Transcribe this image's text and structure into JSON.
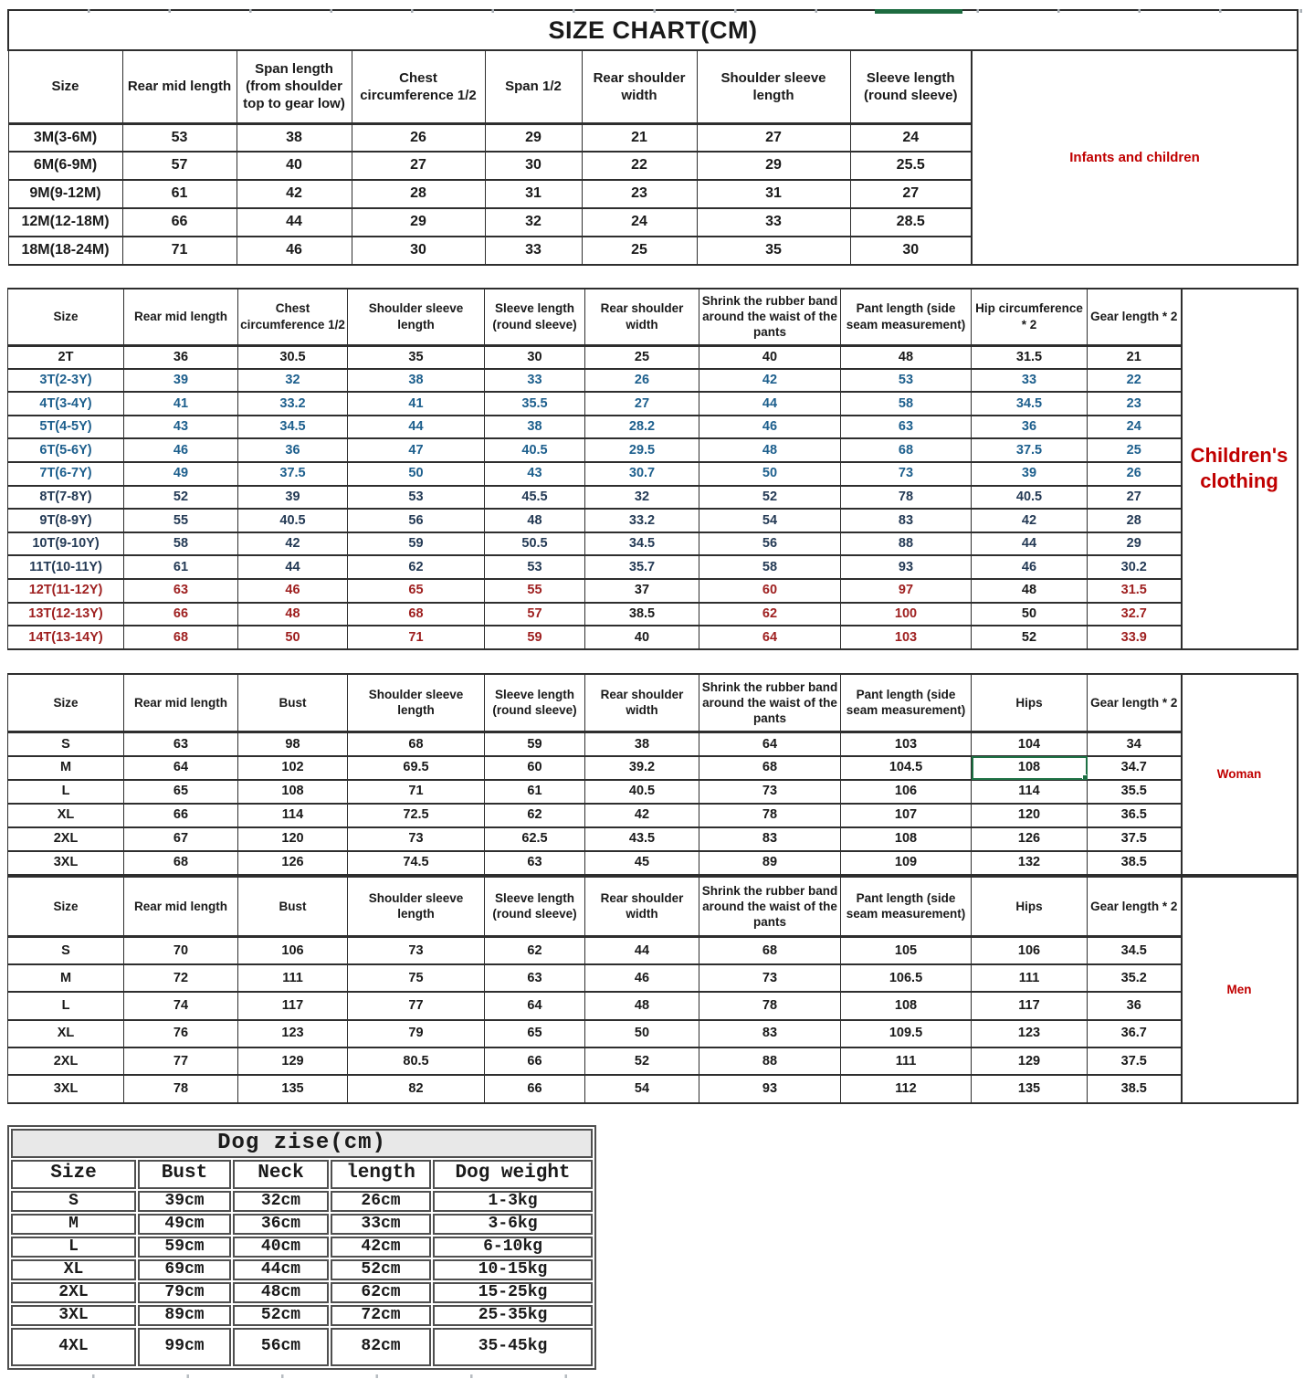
{
  "colors": {
    "black": "#1a1a1a",
    "blue": "#1d5f8d",
    "navy": "#243a55",
    "red": "#9e1f1f",
    "label_red": "#c00000",
    "selection_green": "#1e7145",
    "table_border": "#2e2e2e",
    "dog_border": "#4f4f4f",
    "dog_title_bg": "#e8e8e8",
    "tick_gray": "#aab0b6",
    "top_bar_green": "#1d6b40"
  },
  "tables": {
    "infants": {
      "title": "SIZE CHART(CM)",
      "headers": [
        "Size",
        "Rear mid length",
        "Span length (from shoulder top to gear low)",
        "Chest circumference 1/2",
        "Span 1/2",
        "Rear shoulder width",
        "Shoulder sleeve length",
        "Sleeve length (round sleeve)"
      ],
      "side_label": "Infants and children",
      "rows": [
        {
          "size": "3M(3-6M)",
          "values": [
            "53",
            "38",
            "26",
            "29",
            "21",
            "27",
            "24"
          ],
          "color": "black"
        },
        {
          "size": "6M(6-9M)",
          "values": [
            "57",
            "40",
            "27",
            "30",
            "22",
            "29",
            "25.5"
          ],
          "color": "black"
        },
        {
          "size": "9M(9-12M)",
          "values": [
            "61",
            "42",
            "28",
            "31",
            "23",
            "31",
            "27"
          ],
          "color": "black"
        },
        {
          "size": "12M(12-18M)",
          "values": [
            "66",
            "44",
            "29",
            "32",
            "24",
            "33",
            "28.5"
          ],
          "color": "black"
        },
        {
          "size": "18M(18-24M)",
          "values": [
            "71",
            "46",
            "30",
            "33",
            "25",
            "35",
            "30"
          ],
          "color": "black"
        }
      ]
    },
    "children": {
      "headers": [
        "Size",
        "Rear mid length",
        "Chest circumference 1/2",
        "Shoulder sleeve length",
        "Sleeve length (round sleeve)",
        "Rear shoulder width",
        "Shrink the rubber band around the waist of the pants",
        "Pant length (side seam measurement)",
        "Hip circumference * 2",
        "Gear length * 2"
      ],
      "side_label": "Children's clothing",
      "rows": [
        {
          "size": "2T",
          "values": [
            "36",
            "30.5",
            "35",
            "30",
            "25",
            "40",
            "48",
            "31.5",
            "21"
          ],
          "color": "black"
        },
        {
          "size": "3T(2-3Y)",
          "values": [
            "39",
            "32",
            "38",
            "33",
            "26",
            "42",
            "53",
            "33",
            "22"
          ],
          "color": "blue"
        },
        {
          "size": "4T(3-4Y)",
          "values": [
            "41",
            "33.2",
            "41",
            "35.5",
            "27",
            "44",
            "58",
            "34.5",
            "23"
          ],
          "color": "blue"
        },
        {
          "size": "5T(4-5Y)",
          "values": [
            "43",
            "34.5",
            "44",
            "38",
            "28.2",
            "46",
            "63",
            "36",
            "24"
          ],
          "color": "blue"
        },
        {
          "size": "6T(5-6Y)",
          "values": [
            "46",
            "36",
            "47",
            "40.5",
            "29.5",
            "48",
            "68",
            "37.5",
            "25"
          ],
          "color": "blue"
        },
        {
          "size": "7T(6-7Y)",
          "values": [
            "49",
            "37.5",
            "50",
            "43",
            "30.7",
            "50",
            "73",
            "39",
            "26"
          ],
          "color": "blue"
        },
        {
          "size": "8T(7-8Y)",
          "values": [
            "52",
            "39",
            "53",
            "45.5",
            "32",
            "52",
            "78",
            "40.5",
            "27"
          ],
          "color": "navy"
        },
        {
          "size": "9T(8-9Y)",
          "values": [
            "55",
            "40.5",
            "56",
            "48",
            "33.2",
            "54",
            "83",
            "42",
            "28"
          ],
          "color": "navy"
        },
        {
          "size": "10T(9-10Y)",
          "values": [
            "58",
            "42",
            "59",
            "50.5",
            "34.5",
            "56",
            "88",
            "44",
            "29"
          ],
          "color": "navy"
        },
        {
          "size": "11T(10-11Y)",
          "values": [
            "61",
            "44",
            "62",
            "53",
            "35.7",
            "58",
            "93",
            "46",
            "30.2"
          ],
          "color": "navy"
        },
        {
          "size": "12T(11-12Y)",
          "values": [
            "63",
            "46",
            "65",
            "55",
            "37",
            "60",
            "97",
            "48",
            "31.5"
          ],
          "color": "red",
          "black_value_indices": [
            4,
            7
          ]
        },
        {
          "size": "13T(12-13Y)",
          "values": [
            "66",
            "48",
            "68",
            "57",
            "38.5",
            "62",
            "100",
            "50",
            "32.7"
          ],
          "color": "red",
          "black_value_indices": [
            4,
            7
          ]
        },
        {
          "size": "14T(13-14Y)",
          "values": [
            "68",
            "50",
            "71",
            "59",
            "40",
            "64",
            "103",
            "52",
            "33.9"
          ],
          "color": "red",
          "black_value_indices": [
            4,
            7
          ]
        }
      ]
    },
    "woman": {
      "headers": [
        "Size",
        "Rear mid length",
        "Bust",
        "Shoulder sleeve length",
        "Sleeve length (round sleeve)",
        "Rear shoulder width",
        "Shrink the rubber band around the waist of the pants",
        "Pant length (side seam measurement)",
        "Hips",
        "Gear length * 2"
      ],
      "side_label": "Woman",
      "selected_cell": {
        "row": "M",
        "column": "Hips"
      },
      "rows": [
        {
          "size": "S",
          "values": [
            "63",
            "98",
            "68",
            "59",
            "38",
            "64",
            "103",
            "104",
            "34"
          ],
          "color": "black"
        },
        {
          "size": "M",
          "values": [
            "64",
            "102",
            "69.5",
            "60",
            "39.2",
            "68",
            "104.5",
            "108",
            "34.7"
          ],
          "color": "black"
        },
        {
          "size": "L",
          "values": [
            "65",
            "108",
            "71",
            "61",
            "40.5",
            "73",
            "106",
            "114",
            "35.5"
          ],
          "color": "black"
        },
        {
          "size": "XL",
          "values": [
            "66",
            "114",
            "72.5",
            "62",
            "42",
            "78",
            "107",
            "120",
            "36.5"
          ],
          "color": "black"
        },
        {
          "size": "2XL",
          "values": [
            "67",
            "120",
            "73",
            "62.5",
            "43.5",
            "83",
            "108",
            "126",
            "37.5"
          ],
          "color": "black"
        },
        {
          "size": "3XL",
          "values": [
            "68",
            "126",
            "74.5",
            "63",
            "45",
            "89",
            "109",
            "132",
            "38.5"
          ],
          "color": "black"
        }
      ]
    },
    "men": {
      "headers": [
        "Size",
        "Rear mid length",
        "Bust",
        "Shoulder sleeve length",
        "Sleeve length (round sleeve)",
        "Rear shoulder width",
        "Shrink the rubber band around the waist of the pants",
        "Pant length (side seam measurement)",
        "Hips",
        "Gear length * 2"
      ],
      "side_label": "Men",
      "rows": [
        {
          "size": "S",
          "values": [
            "70",
            "106",
            "73",
            "62",
            "44",
            "68",
            "105",
            "106",
            "34.5"
          ],
          "color": "black"
        },
        {
          "size": "M",
          "values": [
            "72",
            "111",
            "75",
            "63",
            "46",
            "73",
            "106.5",
            "111",
            "35.2"
          ],
          "color": "black"
        },
        {
          "size": "L",
          "values": [
            "74",
            "117",
            "77",
            "64",
            "48",
            "78",
            "108",
            "117",
            "36"
          ],
          "color": "black"
        },
        {
          "size": "XL",
          "values": [
            "76",
            "123",
            "79",
            "65",
            "50",
            "83",
            "109.5",
            "123",
            "36.7"
          ],
          "color": "black"
        },
        {
          "size": "2XL",
          "values": [
            "77",
            "129",
            "80.5",
            "66",
            "52",
            "88",
            "111",
            "129",
            "37.5"
          ],
          "color": "black"
        },
        {
          "size": "3XL",
          "values": [
            "78",
            "135",
            "82",
            "66",
            "54",
            "93",
            "112",
            "135",
            "38.5"
          ],
          "color": "black"
        }
      ]
    },
    "dog": {
      "title": "Dog zise(cm)",
      "headers": [
        "Size",
        "Bust",
        "Neck",
        "length",
        "Dog weight"
      ],
      "rows": [
        {
          "size": "S",
          "values": [
            "39cm",
            "32cm",
            "26cm",
            "1-3kg"
          ],
          "color": "black"
        },
        {
          "size": "M",
          "values": [
            "49cm",
            "36cm",
            "33cm",
            "3-6kg"
          ],
          "color": "black"
        },
        {
          "size": "L",
          "values": [
            "59cm",
            "40cm",
            "42cm",
            "6-10kg"
          ],
          "color": "black"
        },
        {
          "size": "XL",
          "values": [
            "69cm",
            "44cm",
            "52cm",
            "10-15kg"
          ],
          "color": "black"
        },
        {
          "size": "2XL",
          "values": [
            "79cm",
            "48cm",
            "62cm",
            "15-25kg"
          ],
          "color": "black"
        },
        {
          "size": "3XL",
          "values": [
            "89cm",
            "52cm",
            "72cm",
            "25-35kg"
          ],
          "color": "black"
        },
        {
          "size": "4XL",
          "values": [
            "99cm",
            "56cm",
            "82cm",
            "35-45kg"
          ],
          "color": "black"
        }
      ]
    }
  }
}
